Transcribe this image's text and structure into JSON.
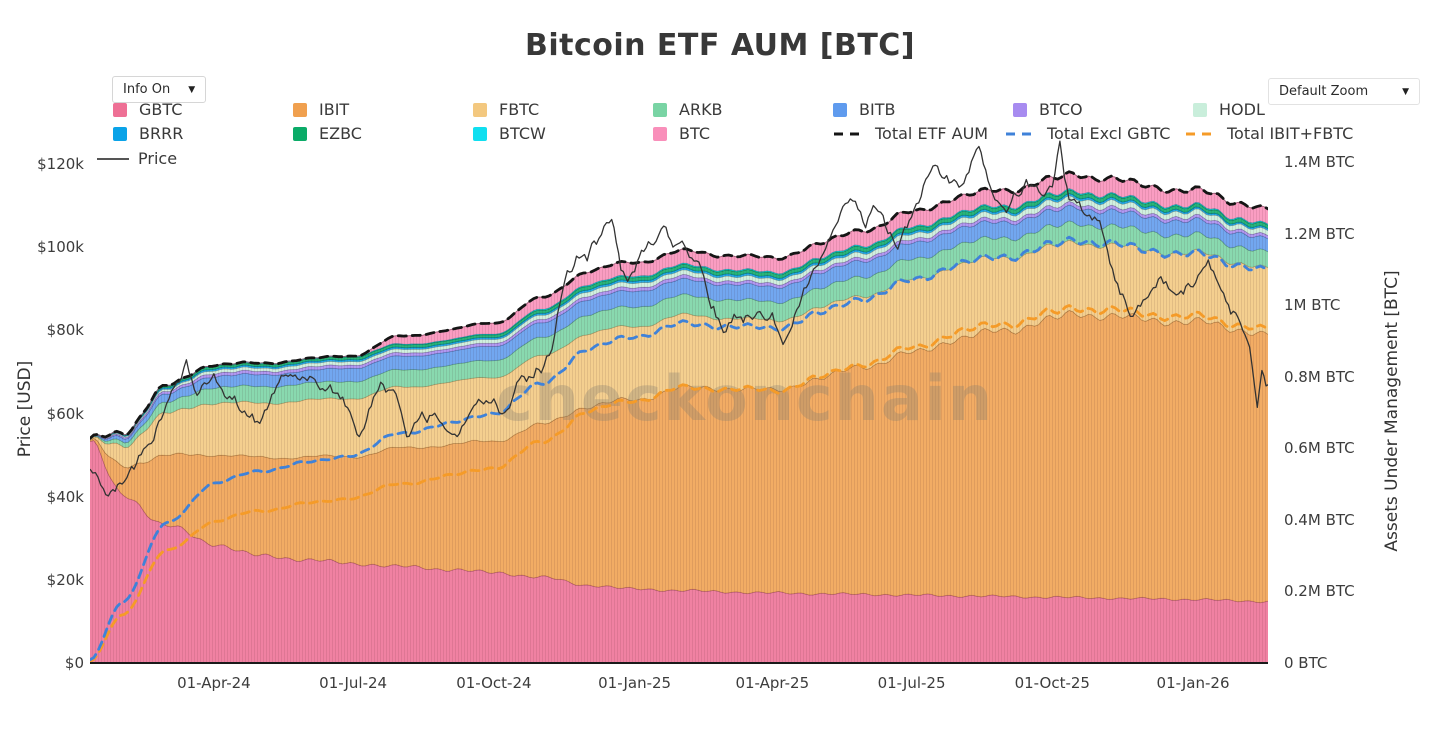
{
  "title": "Bitcoin ETF AUM [BTC]",
  "watermark": "checkonchain",
  "controls": {
    "info_label": "Info On",
    "zoom_label": "Default Zoom",
    "caret": "▼"
  },
  "axes": {
    "y_left": {
      "title": "Price [USD]"
    },
    "y_right": {
      "title": "Assets Under Management [BTC]"
    }
  },
  "chart_data": {
    "type": "area",
    "stacked": true,
    "x_unit": "days since 11-Jan-24",
    "x_range_days": [
      0,
      770
    ],
    "x_ticks": [
      {
        "label": "01-Apr-24",
        "day": 81
      },
      {
        "label": "01-Jul-24",
        "day": 172
      },
      {
        "label": "01-Oct-24",
        "day": 264
      },
      {
        "label": "01-Jan-25",
        "day": 356
      },
      {
        "label": "01-Apr-25",
        "day": 446
      },
      {
        "label": "01-Jul-25",
        "day": 537
      },
      {
        "label": "01-Oct-25",
        "day": 629
      },
      {
        "label": "01-Jan-26",
        "day": 721
      }
    ],
    "y_left_ticks": [
      {
        "label": "$0",
        "usd_k": 0
      },
      {
        "label": "$20k",
        "usd_k": 20
      },
      {
        "label": "$40k",
        "usd_k": 40
      },
      {
        "label": "$60k",
        "usd_k": 60
      },
      {
        "label": "$80k",
        "usd_k": 80
      },
      {
        "label": "$100k",
        "usd_k": 100
      },
      {
        "label": "$120k",
        "usd_k": 120
      }
    ],
    "y_right_ticks": [
      {
        "label": "0 BTC",
        "m_btc": 0
      },
      {
        "label": "0.2M BTC",
        "m_btc": 0.2
      },
      {
        "label": "0.4M BTC",
        "m_btc": 0.4
      },
      {
        "label": "0.6M BTC",
        "m_btc": 0.6
      },
      {
        "label": "0.8M BTC",
        "m_btc": 0.8
      },
      {
        "label": "1M BTC",
        "m_btc": 1.0
      },
      {
        "label": "1.2M BTC",
        "m_btc": 1.2
      },
      {
        "label": "1.4M BTC",
        "m_btc": 1.4
      }
    ],
    "ylim_left_usd_k": [
      0,
      130
    ],
    "ylim_right_m_btc": [
      0,
      1.45
    ],
    "x_days": [
      0,
      21,
      50,
      81,
      111,
      142,
      172,
      203,
      234,
      264,
      295,
      325,
      356,
      387,
      415,
      446,
      476,
      507,
      537,
      568,
      599,
      629,
      645,
      660,
      690,
      721,
      752,
      770
    ],
    "series": [
      {
        "name": "GBTC",
        "color": "#ee7095",
        "values_m_btc": [
          0.619,
          0.47,
          0.385,
          0.333,
          0.3,
          0.289,
          0.278,
          0.27,
          0.262,
          0.253,
          0.24,
          0.218,
          0.207,
          0.203,
          0.199,
          0.196,
          0.194,
          0.192,
          0.19,
          0.188,
          0.186,
          0.184,
          0.183,
          0.182,
          0.18,
          0.178,
          0.174,
          0.172
        ]
      },
      {
        "name": "IBIT",
        "color": "#f0a04f",
        "values_m_btc": [
          0.003,
          0.08,
          0.195,
          0.25,
          0.274,
          0.287,
          0.3,
          0.33,
          0.348,
          0.368,
          0.425,
          0.5,
          0.53,
          0.565,
          0.57,
          0.565,
          0.6,
          0.64,
          0.675,
          0.72,
          0.745,
          0.775,
          0.795,
          0.79,
          0.78,
          0.775,
          0.76,
          0.745
        ]
      },
      {
        "name": "FBTC",
        "color": "#f3c87f",
        "values_m_btc": [
          0.002,
          0.055,
          0.118,
          0.145,
          0.152,
          0.158,
          0.163,
          0.17,
          0.174,
          0.179,
          0.19,
          0.203,
          0.205,
          0.202,
          0.198,
          0.194,
          0.197,
          0.199,
          0.203,
          0.206,
          0.204,
          0.201,
          0.2,
          0.198,
          0.195,
          0.192,
          0.188,
          0.185
        ]
      },
      {
        "name": "ARKB",
        "color": "#79d4a4",
        "values_m_btc": [
          0.001,
          0.013,
          0.03,
          0.044,
          0.046,
          0.047,
          0.048,
          0.048,
          0.047,
          0.048,
          0.051,
          0.053,
          0.055,
          0.054,
          0.052,
          0.051,
          0.053,
          0.054,
          0.056,
          0.056,
          0.055,
          0.054,
          0.054,
          0.053,
          0.051,
          0.049,
          0.046,
          0.044
        ]
      },
      {
        "name": "BITB",
        "color": "#5f9bee",
        "values_m_btc": [
          0.001,
          0.01,
          0.023,
          0.031,
          0.033,
          0.035,
          0.037,
          0.038,
          0.038,
          0.039,
          0.041,
          0.043,
          0.044,
          0.044,
          0.043,
          0.042,
          0.043,
          0.044,
          0.045,
          0.045,
          0.044,
          0.044,
          0.044,
          0.043,
          0.041,
          0.04,
          0.038,
          0.037
        ]
      },
      {
        "name": "BTCO",
        "color": "#a78bf0",
        "values_m_btc": [
          0.0005,
          0.004,
          0.007,
          0.009,
          0.009,
          0.009,
          0.009,
          0.009,
          0.009,
          0.009,
          0.009,
          0.01,
          0.01,
          0.01,
          0.009,
          0.009,
          0.009,
          0.009,
          0.01,
          0.01,
          0.01,
          0.01,
          0.01,
          0.01,
          0.009,
          0.009,
          0.009,
          0.009
        ]
      },
      {
        "name": "HODL",
        "color": "#c9eedb",
        "values_m_btc": [
          0.0005,
          0.003,
          0.006,
          0.009,
          0.009,
          0.01,
          0.01,
          0.01,
          0.01,
          0.011,
          0.012,
          0.013,
          0.013,
          0.013,
          0.013,
          0.013,
          0.014,
          0.014,
          0.015,
          0.015,
          0.015,
          0.016,
          0.016,
          0.016,
          0.015,
          0.015,
          0.014,
          0.014
        ]
      },
      {
        "name": "BRRR",
        "color": "#0aa3e8",
        "values_m_btc": [
          0.0003,
          0.002,
          0.004,
          0.005,
          0.005,
          0.005,
          0.005,
          0.005,
          0.005,
          0.005,
          0.005,
          0.006,
          0.006,
          0.006,
          0.006,
          0.006,
          0.006,
          0.006,
          0.006,
          0.006,
          0.006,
          0.006,
          0.006,
          0.006,
          0.006,
          0.005,
          0.005,
          0.005
        ]
      },
      {
        "name": "EZBC",
        "color": "#0bab68",
        "values_m_btc": [
          0.0003,
          0.002,
          0.005,
          0.007,
          0.007,
          0.007,
          0.008,
          0.008,
          0.008,
          0.008,
          0.009,
          0.01,
          0.01,
          0.01,
          0.01,
          0.01,
          0.01,
          0.011,
          0.011,
          0.011,
          0.011,
          0.011,
          0.011,
          0.011,
          0.01,
          0.01,
          0.01,
          0.01
        ]
      },
      {
        "name": "BTCW",
        "color": "#10dff0",
        "values_m_btc": [
          0.0002,
          0.001,
          0.002,
          0.002,
          0.002,
          0.002,
          0.002,
          0.002,
          0.002,
          0.002,
          0.003,
          0.003,
          0.003,
          0.003,
          0.003,
          0.003,
          0.003,
          0.003,
          0.003,
          0.003,
          0.003,
          0.003,
          0.003,
          0.003,
          0.003,
          0.003,
          0.003,
          0.003
        ]
      },
      {
        "name": "BTC",
        "color": "#f98fba",
        "values_m_btc": [
          0,
          0,
          0,
          0,
          0,
          0,
          0,
          0.022,
          0.027,
          0.03,
          0.033,
          0.036,
          0.038,
          0.039,
          0.039,
          0.04,
          0.041,
          0.042,
          0.043,
          0.044,
          0.044,
          0.045,
          0.046,
          0.045,
          0.044,
          0.043,
          0.042,
          0.042
        ]
      }
    ],
    "overlays": [
      {
        "name": "Total ETF AUM",
        "color": "#151515",
        "composition": "total"
      },
      {
        "name": "Total Excl GBTC",
        "color": "#3f82d9",
        "composition": "total_excl_gbtc"
      },
      {
        "name": "Total IBIT+FBTC",
        "color": "#f59b28",
        "composition": "ibit_plus_fbtc"
      }
    ],
    "price": {
      "name": "Price",
      "color": "#333333",
      "legend_color": "#555555",
      "points_day_usd_k": [
        [
          0,
          46.6
        ],
        [
          7,
          42.8
        ],
        [
          12,
          40.2
        ],
        [
          21,
          43.0
        ],
        [
          35,
          51.5
        ],
        [
          50,
          62.4
        ],
        [
          63,
          73.0
        ],
        [
          70,
          64.5
        ],
        [
          81,
          69.8
        ],
        [
          88,
          64.0
        ],
        [
          101,
          60.8
        ],
        [
          111,
          57.5
        ],
        [
          122,
          66.5
        ],
        [
          131,
          69.3
        ],
        [
          142,
          67.7
        ],
        [
          152,
          66.0
        ],
        [
          162,
          64.8
        ],
        [
          170,
          60.2
        ],
        [
          176,
          54.5
        ],
        [
          190,
          67.5
        ],
        [
          200,
          64.5
        ],
        [
          207,
          54.5
        ],
        [
          217,
          60.5
        ],
        [
          227,
          59.0
        ],
        [
          240,
          54.5
        ],
        [
          254,
          63.5
        ],
        [
          264,
          63.6
        ],
        [
          271,
          60.5
        ],
        [
          279,
          67.5
        ],
        [
          290,
          68.5
        ],
        [
          295,
          69.8
        ],
        [
          302,
          75.5
        ],
        [
          309,
          89.5
        ],
        [
          318,
          98.0
        ],
        [
          325,
          96.5
        ],
        [
          331,
          100.5
        ],
        [
          341,
          106.5
        ],
        [
          347,
          94.5
        ],
        [
          356,
          94.0
        ],
        [
          365,
          101.5
        ],
        [
          375,
          105.0
        ],
        [
          381,
          100.0
        ],
        [
          387,
          101.5
        ],
        [
          398,
          96.5
        ],
        [
          414,
          79.5
        ],
        [
          421,
          84.0
        ],
        [
          433,
          82.5
        ],
        [
          446,
          84.5
        ],
        [
          453,
          76.5
        ],
        [
          462,
          85.0
        ],
        [
          476,
          95.5
        ],
        [
          497,
          111.5
        ],
        [
          507,
          104.5
        ],
        [
          512,
          110.0
        ],
        [
          528,
          99.5
        ],
        [
          537,
          107.0
        ],
        [
          551,
          119.5
        ],
        [
          560,
          117.5
        ],
        [
          568,
          114.5
        ],
        [
          581,
          124.0
        ],
        [
          590,
          113.0
        ],
        [
          599,
          108.5
        ],
        [
          612,
          116.5
        ],
        [
          622,
          112.5
        ],
        [
          629,
          114.5
        ],
        [
          634,
          125.5
        ],
        [
          640,
          111.5
        ],
        [
          650,
          108.0
        ],
        [
          660,
          106.5
        ],
        [
          670,
          92.0
        ],
        [
          680,
          83.5
        ],
        [
          690,
          87.5
        ],
        [
          700,
          93.0
        ],
        [
          710,
          88.5
        ],
        [
          721,
          90.5
        ],
        [
          731,
          97.0
        ],
        [
          741,
          89.0
        ],
        [
          752,
          81.5
        ],
        [
          758,
          76.0
        ],
        [
          763,
          61.5
        ],
        [
          766,
          70.5
        ],
        [
          770,
          67.0
        ]
      ]
    }
  }
}
